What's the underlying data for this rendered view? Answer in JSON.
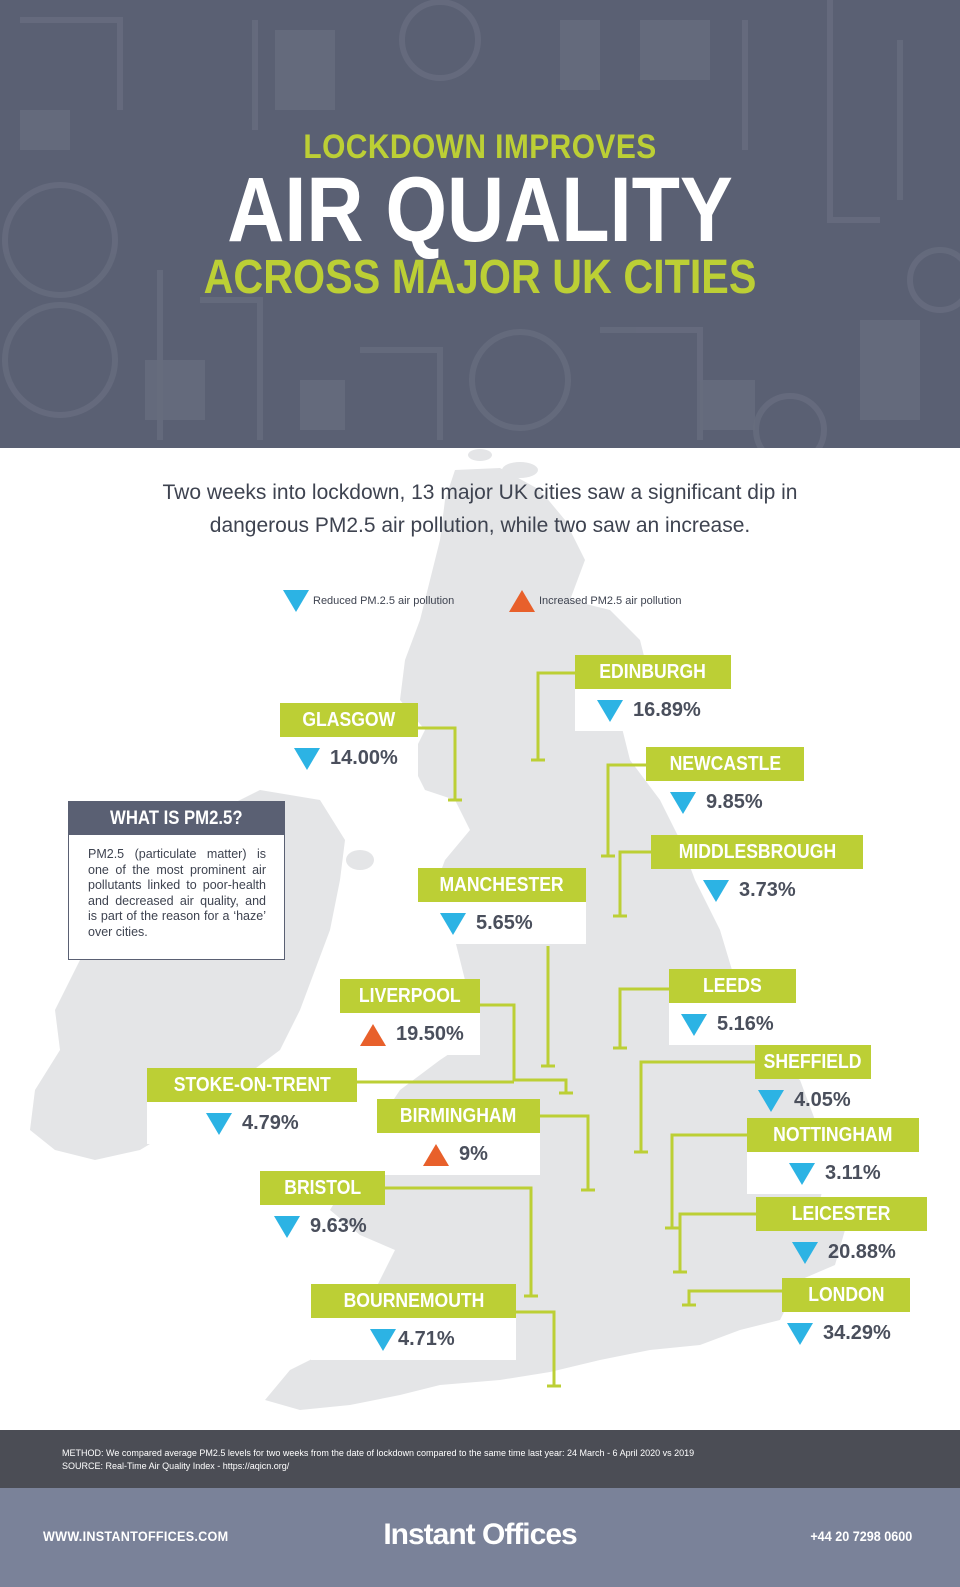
{
  "header": {
    "line1": "LOCKDOWN IMPROVES",
    "line2": "AIR QUALITY",
    "line3": "ACROSS MAJOR UK CITIES"
  },
  "intro": {
    "line1": "Two weeks into lockdown, 13 major UK cities saw a significant dip in",
    "line2": "dangerous PM2.5 air pollution, while two saw an increase."
  },
  "legend": {
    "reduced": "Reduced PM.2.5 air pollution",
    "increased": "Increased PM2.5 air pollution"
  },
  "colors": {
    "accent": "#bccf35",
    "header_bg": "#5a6073",
    "decrease": "#2cb3e4",
    "increase": "#e8602b",
    "map": "#e4e5e7"
  },
  "cities": [
    {
      "name": "EDINBURGH",
      "value": "16.89%",
      "trend": "down"
    },
    {
      "name": "GLASGOW",
      "value": "14.00%",
      "trend": "down"
    },
    {
      "name": "NEWCASTLE",
      "value": "9.85%",
      "trend": "down"
    },
    {
      "name": "MIDDLESBROUGH",
      "value": "3.73%",
      "trend": "down"
    },
    {
      "name": "MANCHESTER",
      "value": "5.65%",
      "trend": "down"
    },
    {
      "name": "LEEDS",
      "value": "5.16%",
      "trend": "down"
    },
    {
      "name": "LIVERPOOL",
      "value": "19.50%",
      "trend": "up"
    },
    {
      "name": "SHEFFIELD",
      "value": "4.05%",
      "trend": "down"
    },
    {
      "name": "STOKE-ON-TRENT",
      "value": "4.79%",
      "trend": "down"
    },
    {
      "name": "BIRMINGHAM",
      "value": "9%",
      "trend": "up"
    },
    {
      "name": "NOTTINGHAM",
      "value": "3.11%",
      "trend": "down"
    },
    {
      "name": "BRISTOL",
      "value": "9.63%",
      "trend": "down"
    },
    {
      "name": "LEICESTER",
      "value": "20.88%",
      "trend": "down"
    },
    {
      "name": "LONDON",
      "value": "34.29%",
      "trend": "down"
    },
    {
      "name": "BOURNEMOUTH",
      "value": "4.71%",
      "trend": "down"
    }
  ],
  "pm_box": {
    "title": "WHAT IS PM2.5?",
    "text": "PM2.5 (particulate matter) is one of the most prominent air pollutants linked to poor-health and decreased air quality, and is part of the reason for a ‘haze’ over cities."
  },
  "method": {
    "line1": "METHOD: We compared average PM2.5 levels for two weeks from the date of lockdown compared to the same time last year: 24 March - 6 April 2020 vs 2019",
    "line2": "SOURCE: Real-Time Air Quality Index - https://aqicn.org/"
  },
  "footer": {
    "website": "WWW.INSTANTOFFICES.COM",
    "brand": "Instant Offices",
    "phone": "+44 20 7298 0600"
  }
}
